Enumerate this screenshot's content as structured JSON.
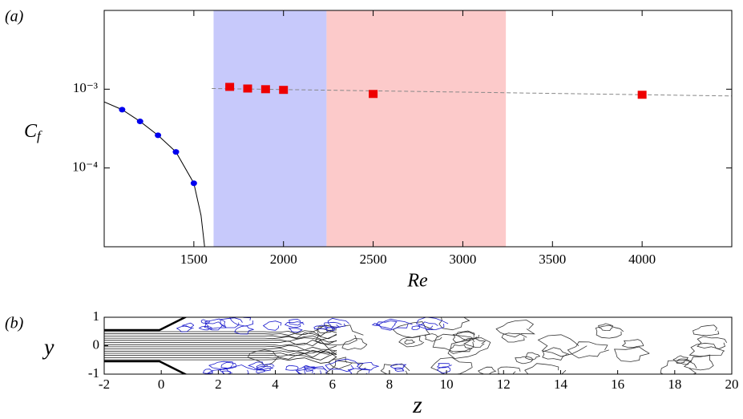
{
  "chart_data": [
    {
      "type": "scatter",
      "panel_label": "(a)",
      "xlabel": "Re",
      "ylabel": "Cf",
      "xlim": [
        1000,
        4500
      ],
      "ylim": [
        1e-05,
        0.01
      ],
      "log_y": true,
      "xticks": [
        1500,
        2000,
        2500,
        3000,
        3500,
        4000
      ],
      "yticks": [
        {
          "value": 0.001,
          "label": "10⁻³"
        },
        {
          "value": 0.0001,
          "label": "10⁻⁴"
        }
      ],
      "bands": [
        {
          "x": [
            1610,
            2240
          ],
          "color": "#c7c9fb"
        },
        {
          "x": [
            2240,
            3240
          ],
          "color": "#fccaca"
        }
      ],
      "series": [
        {
          "color": "#000000",
          "marker": null,
          "dash": false,
          "x": [
            1000,
            1100,
            1200,
            1300,
            1400,
            1500,
            1540,
            1560
          ],
          "values": [
            0.00069,
            0.00055,
            0.00039,
            0.00026,
            0.00016,
            6.4e-05,
            2.5e-05,
            1e-05
          ]
        },
        {
          "color": "#0000ee",
          "marker": "circle",
          "dash": false,
          "x": [
            1100,
            1200,
            1300,
            1400,
            1500
          ],
          "values": [
            0.00055,
            0.00039,
            0.00026,
            0.00016,
            6.4e-05
          ]
        },
        {
          "color": "#888888",
          "marker": null,
          "dash": true,
          "x": [
            1600,
            4500
          ],
          "values": [
            0.00102,
            0.00082
          ]
        },
        {
          "color": "#ee0000",
          "marker": "square",
          "dash": false,
          "x": [
            1700,
            1800,
            1900,
            2000,
            2500,
            4000
          ],
          "values": [
            0.00107,
            0.00102,
            0.001,
            0.00098,
            0.00087,
            0.00085
          ]
        }
      ]
    },
    {
      "type": "contour",
      "panel_label": "(b)",
      "xlabel": "z",
      "ylabel": "y",
      "xlim": [
        -2,
        20
      ],
      "ylim": [
        -1,
        1
      ],
      "xticks": [
        -2,
        0,
        2,
        4,
        6,
        8,
        10,
        12,
        14,
        16,
        18,
        20
      ],
      "yticks": [
        -1,
        0,
        1
      ]
    }
  ]
}
